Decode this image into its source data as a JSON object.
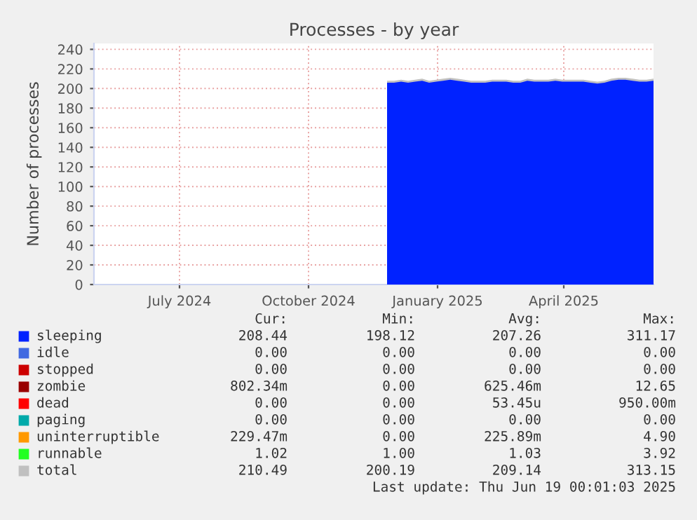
{
  "chart_data": {
    "type": "area",
    "title": "Processes - by year",
    "ylabel": "Number of processes",
    "x": [
      "2024-11-26",
      "2024-12-01",
      "2024-12-06",
      "2024-12-11",
      "2024-12-16",
      "2024-12-21",
      "2024-12-26",
      "2024-12-31",
      "2025-01-05",
      "2025-01-10",
      "2025-01-15",
      "2025-01-20",
      "2025-01-25",
      "2025-01-30",
      "2025-02-04",
      "2025-02-09",
      "2025-02-14",
      "2025-02-19",
      "2025-02-24",
      "2025-03-01",
      "2025-03-06",
      "2025-03-11",
      "2025-03-16",
      "2025-03-21",
      "2025-03-26",
      "2025-03-31",
      "2025-04-05",
      "2025-04-10",
      "2025-04-15",
      "2025-04-20",
      "2025-04-25",
      "2025-04-30",
      "2025-05-05",
      "2025-05-10",
      "2025-05-15",
      "2025-05-20",
      "2025-05-25",
      "2025-05-30",
      "2025-06-04"
    ],
    "series": [
      {
        "name": "sleeping",
        "color": "#0022ff",
        "values": [
          206,
          206,
          207,
          206,
          207,
          208,
          206,
          207,
          208,
          209,
          208,
          207,
          206,
          206,
          206,
          207,
          207,
          207,
          206,
          206,
          208,
          207,
          207,
          207,
          208,
          207,
          207,
          207,
          207,
          206,
          205,
          206,
          208,
          209,
          209,
          208,
          207,
          207,
          208
        ]
      },
      {
        "name": "idle",
        "color": "#4169e1",
        "values": [
          null,
          null,
          null,
          null,
          null,
          null,
          null,
          null,
          null,
          null,
          null,
          null,
          null,
          null,
          null,
          null,
          null,
          null,
          null,
          null,
          null,
          null,
          null,
          null,
          null,
          null,
          null,
          null,
          null,
          null,
          null,
          null,
          null,
          null,
          null,
          null,
          null,
          null,
          null
        ]
      },
      {
        "name": "stopped",
        "color": "#cc0000",
        "values": [
          null,
          null,
          null,
          null,
          null,
          null,
          null,
          null,
          null,
          null,
          null,
          null,
          null,
          null,
          null,
          null,
          null,
          null,
          null,
          null,
          null,
          null,
          null,
          null,
          null,
          null,
          null,
          null,
          null,
          null,
          null,
          null,
          null,
          null,
          null,
          null,
          null,
          null,
          null
        ]
      },
      {
        "name": "zombie",
        "color": "#990000",
        "values": [
          null,
          null,
          null,
          null,
          null,
          null,
          null,
          null,
          null,
          null,
          null,
          null,
          null,
          null,
          null,
          null,
          null,
          null,
          null,
          null,
          null,
          null,
          null,
          null,
          null,
          null,
          null,
          null,
          null,
          null,
          null,
          null,
          null,
          null,
          null,
          null,
          null,
          null,
          null
        ]
      },
      {
        "name": "dead",
        "color": "#ff0000",
        "values": [
          null,
          null,
          null,
          null,
          null,
          null,
          null,
          null,
          null,
          null,
          null,
          null,
          null,
          null,
          null,
          null,
          null,
          null,
          null,
          null,
          null,
          null,
          null,
          null,
          null,
          null,
          null,
          null,
          null,
          null,
          null,
          null,
          null,
          null,
          null,
          null,
          null,
          null,
          null
        ]
      },
      {
        "name": "paging",
        "color": "#00aaaa",
        "values": [
          null,
          null,
          null,
          null,
          null,
          null,
          null,
          null,
          null,
          null,
          null,
          null,
          null,
          null,
          null,
          null,
          null,
          null,
          null,
          null,
          null,
          null,
          null,
          null,
          null,
          null,
          null,
          null,
          null,
          null,
          null,
          null,
          null,
          null,
          null,
          null,
          null,
          null,
          null
        ]
      },
      {
        "name": "uninterruptible",
        "color": "#ff9900",
        "values": [
          null,
          null,
          null,
          null,
          null,
          null,
          null,
          null,
          null,
          null,
          null,
          null,
          null,
          null,
          null,
          null,
          null,
          null,
          null,
          null,
          null,
          null,
          null,
          null,
          null,
          null,
          null,
          null,
          null,
          null,
          null,
          null,
          null,
          null,
          null,
          null,
          null,
          null,
          null
        ]
      },
      {
        "name": "runnable",
        "color": "#22ff22",
        "values": [
          null,
          null,
          null,
          null,
          null,
          null,
          null,
          null,
          null,
          null,
          null,
          null,
          null,
          null,
          null,
          null,
          null,
          null,
          null,
          null,
          null,
          null,
          null,
          null,
          null,
          null,
          null,
          null,
          null,
          null,
          null,
          null,
          null,
          null,
          null,
          null,
          null,
          null,
          null
        ]
      },
      {
        "name": "total",
        "color": "#c0c0c0",
        "values": [
          208,
          208,
          209,
          208,
          209,
          210,
          208,
          209,
          210,
          211,
          210,
          209,
          208,
          208,
          208,
          209,
          209,
          209,
          208,
          208,
          210,
          209,
          209,
          209,
          210,
          209,
          209,
          209,
          209,
          208,
          207,
          208,
          210,
          211,
          211,
          210,
          209,
          209,
          210
        ]
      }
    ],
    "xlim": [
      "2024-05-01",
      "2025-06-04"
    ],
    "xticks": [
      {
        "value": "2024-07-01",
        "label": "July 2024"
      },
      {
        "value": "2024-10-01",
        "label": "October 2024"
      },
      {
        "value": "2025-01-01",
        "label": "January 2025"
      },
      {
        "value": "2025-04-01",
        "label": "April 2025"
      }
    ],
    "ylim": [
      0,
      246
    ],
    "yticks": [
      0,
      20,
      40,
      60,
      80,
      100,
      120,
      140,
      160,
      180,
      200,
      220,
      240
    ],
    "grid": true,
    "legend": "bottom",
    "annotations": [
      "Cur:",
      "Min:",
      "Avg:",
      "Max:",
      "208.44",
      "198.12",
      "207.26",
      "311.17",
      "0.00",
      "0.00",
      "0.00",
      "0.00",
      "0.00",
      "0.00",
      "0.00",
      "0.00",
      "802.34m",
      "0.00",
      "625.46m",
      "12.65",
      "0.00",
      "0.00",
      "53.45u",
      "950.00m",
      "0.00",
      "0.00",
      "0.00",
      "0.00",
      "229.47m",
      "0.00",
      "225.89m",
      "4.90",
      "1.02",
      "1.00",
      "1.03",
      "3.92",
      "210.49",
      "200.19",
      "209.14",
      "313.15",
      "Last update: Thu Jun 19 00:01:03 2025"
    ]
  }
}
